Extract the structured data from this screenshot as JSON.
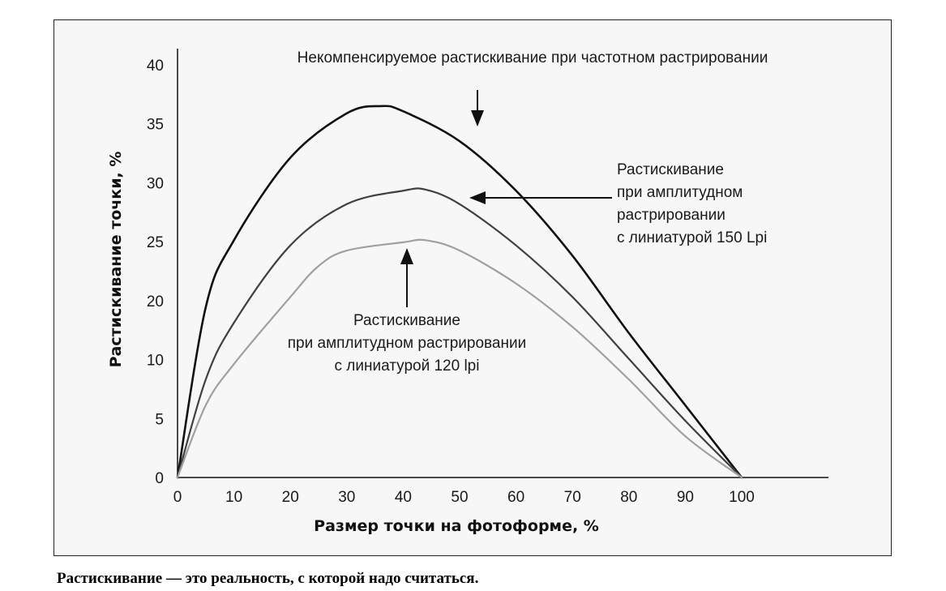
{
  "chart_data": {
    "type": "line",
    "xlabel": "Размер точки на фотоформе, %",
    "ylabel": "Растискивание точки, %",
    "xlim": [
      0,
      115
    ],
    "ylim": [
      0,
      40
    ],
    "x_ticks": [
      "0",
      "10",
      "20",
      "30",
      "40",
      "50",
      "60",
      "70",
      "80",
      "90",
      "100"
    ],
    "y_ticks": [
      "0",
      "5",
      "10",
      "20",
      "25",
      "30",
      "35",
      "40"
    ],
    "grid": false,
    "series": [
      {
        "key": "stochastic",
        "color": "#111111",
        "x": [
          0,
          5,
          10,
          20,
          30,
          36,
          40,
          50,
          60,
          70,
          80,
          90,
          100
        ],
        "y": [
          0,
          16.5,
          23,
          31,
          35.3,
          36,
          35.5,
          32.6,
          27.8,
          21.5,
          14,
          7,
          0
        ]
      },
      {
        "key": "am150",
        "color": "#404040",
        "x": [
          0,
          5,
          10,
          20,
          30,
          40,
          44,
          50,
          60,
          70,
          80,
          90,
          100
        ],
        "y": [
          0,
          9.5,
          15,
          22.5,
          26.5,
          27.8,
          27.9,
          26.5,
          22.5,
          17.5,
          11.5,
          5.5,
          0
        ]
      },
      {
        "key": "am120",
        "color": "#a0a0a0",
        "x": [
          0,
          5,
          10,
          20,
          25,
          30,
          40,
          44,
          50,
          60,
          70,
          80,
          90,
          100
        ],
        "y": [
          0,
          7,
          11,
          17.5,
          20.5,
          22,
          22.8,
          23,
          22,
          18.8,
          14.6,
          9.5,
          4,
          0
        ]
      }
    ],
    "annotations": [
      {
        "key": "stochastic",
        "lines": [
          "Некомпенсируемое растискивание при частотном растрировании"
        ]
      },
      {
        "key": "am150",
        "lines": [
          "Растискивание",
          "при амплитудном",
          "растрировании",
          "с линиатурой 150 Lpi"
        ]
      },
      {
        "key": "am120",
        "lines": [
          "Растискивание",
          "при амплитудном растрировании",
          "с линиатурой 120 lpi"
        ]
      }
    ]
  },
  "caption": "Растискивание — это реальность, с которой надо считаться."
}
